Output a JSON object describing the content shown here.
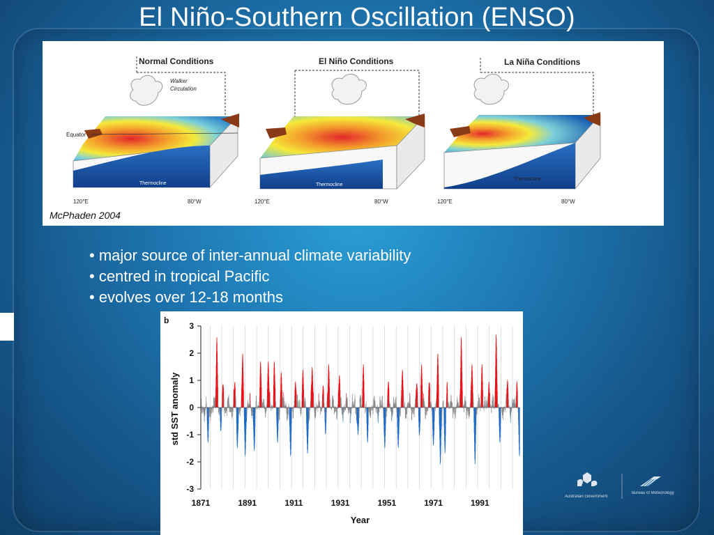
{
  "slide": {
    "title": "El Niño-Southern Oscillation (ENSO)",
    "bullets": [
      "• major source of inter-annual climate variability",
      "• centred in tropical Pacific",
      "• evolves over 12-18 months"
    ]
  },
  "diagram": {
    "credit": "McPhaden 2004",
    "panels": [
      {
        "title": "Normal Conditions",
        "walker_label": "Walker",
        "circulation_label": "Circulation",
        "equator_label": "Equator",
        "thermocline_label": "Thermocline",
        "lon_west": "120°E",
        "lon_east": "80°W"
      },
      {
        "title": "El Niño Conditions",
        "thermocline_label": "Thermocline",
        "lon_west": "120°E",
        "lon_east": "80°W"
      },
      {
        "title": "La Niña Conditions",
        "thermocline_label": "Thermocline",
        "lon_west": "120°E",
        "lon_east": "80°W"
      }
    ]
  },
  "chart_data": {
    "type": "bar",
    "panel_label": "b",
    "xlabel": "Year",
    "ylabel": "std SST anomaly",
    "ylim": [
      -3,
      3
    ],
    "yticks": [
      3,
      2,
      1,
      0,
      -1,
      -2,
      -3
    ],
    "xlim": [
      1871,
      2008
    ],
    "xticks": [
      1871,
      1891,
      1911,
      1931,
      1951,
      1971,
      1991
    ],
    "grid": "vertical lines every 5 years",
    "colors": {
      "positive": "#e8141a",
      "negative": "#1f6cc9",
      "neutral": "#8a8a8a"
    },
    "threshold": 0.5,
    "events": [
      {
        "year": 1877.8,
        "value": 2.6
      },
      {
        "year": 1880.5,
        "value": 0.9
      },
      {
        "year": 1885.5,
        "value": 0.9
      },
      {
        "year": 1888.9,
        "value": 2.0
      },
      {
        "year": 1896.6,
        "value": 1.7
      },
      {
        "year": 1899.9,
        "value": 1.7
      },
      {
        "year": 1902.5,
        "value": 1.7
      },
      {
        "year": 1905.5,
        "value": 1.3
      },
      {
        "year": 1911.6,
        "value": 1.0
      },
      {
        "year": 1914.8,
        "value": 1.4
      },
      {
        "year": 1918.8,
        "value": 1.5
      },
      {
        "year": 1923.5,
        "value": 0.9
      },
      {
        "year": 1925.9,
        "value": 1.6
      },
      {
        "year": 1930.5,
        "value": 1.2
      },
      {
        "year": 1940.8,
        "value": 1.6
      },
      {
        "year": 1951.6,
        "value": 0.9
      },
      {
        "year": 1957.6,
        "value": 1.4
      },
      {
        "year": 1963.8,
        "value": 0.9
      },
      {
        "year": 1965.8,
        "value": 1.6
      },
      {
        "year": 1969.1,
        "value": 0.9
      },
      {
        "year": 1972.8,
        "value": 2.0
      },
      {
        "year": 1976.8,
        "value": 1.0
      },
      {
        "year": 1982.9,
        "value": 2.6
      },
      {
        "year": 1987.5,
        "value": 1.6
      },
      {
        "year": 1991.8,
        "value": 1.6
      },
      {
        "year": 1994.8,
        "value": 1.0
      },
      {
        "year": 1997.9,
        "value": 2.7
      },
      {
        "year": 2002.8,
        "value": 1.0
      },
      {
        "year": 2006.8,
        "value": 1.0
      }
    ],
    "la_nina_events": [
      {
        "year": 1874.0,
        "value": -1.3
      },
      {
        "year": 1879.5,
        "value": -0.9
      },
      {
        "year": 1886.6,
        "value": -1.5
      },
      {
        "year": 1890.0,
        "value": -1.8
      },
      {
        "year": 1893.9,
        "value": -1.6
      },
      {
        "year": 1903.9,
        "value": -1.3
      },
      {
        "year": 1909.5,
        "value": -1.8
      },
      {
        "year": 1916.8,
        "value": -1.7
      },
      {
        "year": 1924.5,
        "value": -1.0
      },
      {
        "year": 1938.5,
        "value": -1.0
      },
      {
        "year": 1942.6,
        "value": -1.3
      },
      {
        "year": 1950.0,
        "value": -1.5
      },
      {
        "year": 1955.8,
        "value": -1.5
      },
      {
        "year": 1964.9,
        "value": -1.0
      },
      {
        "year": 1970.9,
        "value": -1.4
      },
      {
        "year": 1973.9,
        "value": -2.1
      },
      {
        "year": 1975.9,
        "value": -1.7
      },
      {
        "year": 1988.8,
        "value": -2.1
      },
      {
        "year": 1999.5,
        "value": -1.3
      },
      {
        "year": 2007.9,
        "value": -1.8
      }
    ]
  },
  "logos": {
    "left_caption": "Australian Government",
    "right_caption": "Bureau of Meteorology"
  }
}
